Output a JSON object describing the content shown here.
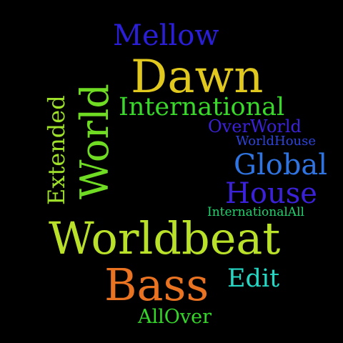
{
  "words": [
    {
      "text": "Mellow",
      "color": "#2a1fd6"
    },
    {
      "text": "Dawn",
      "color": "#e0c81e"
    },
    {
      "text": "International",
      "color": "#39d82a"
    },
    {
      "text": "OverWorld",
      "color": "#3b22d8"
    },
    {
      "text": "WorldHouse",
      "color": "#2e44db"
    },
    {
      "text": "Global",
      "color": "#2f74e0"
    },
    {
      "text": "House",
      "color": "#3b22d8"
    },
    {
      "text": "InternationalAll",
      "color": "#21d26e"
    },
    {
      "text": "Worldbeat",
      "color": "#b9e12a"
    },
    {
      "text": "Bass",
      "color": "#ea7322"
    },
    {
      "text": "Edit",
      "color": "#25d7c4"
    },
    {
      "text": "AllOver",
      "color": "#36d62b"
    },
    {
      "text": "World",
      "color": "#6fdb23"
    },
    {
      "text": "Extended",
      "color": "#9ee02a"
    }
  ]
}
